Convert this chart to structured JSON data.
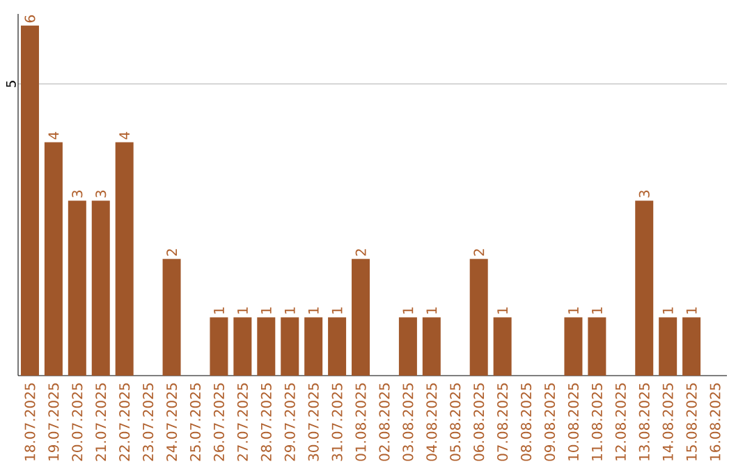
{
  "chart_data": {
    "type": "bar",
    "categories": [
      "18.07.2025",
      "19.07.2025",
      "20.07.2025",
      "21.07.2025",
      "22.07.2025",
      "23.07.2025",
      "24.07.2025",
      "25.07.2025",
      "26.07.2025",
      "27.07.2025",
      "28.07.2025",
      "29.07.2025",
      "30.07.2025",
      "31.07.2025",
      "01.08.2025",
      "02.08.2025",
      "03.08.2025",
      "04.08.2025",
      "05.08.2025",
      "06.08.2025",
      "07.08.2025",
      "08.08.2025",
      "09.08.2025",
      "10.08.2025",
      "11.08.2025",
      "12.08.2025",
      "13.08.2025",
      "14.08.2025",
      "15.08.2025",
      "16.08.2025"
    ],
    "values": [
      6,
      4,
      3,
      3,
      4,
      0,
      2,
      0,
      1,
      1,
      1,
      1,
      1,
      1,
      2,
      0,
      1,
      1,
      0,
      2,
      1,
      0,
      0,
      1,
      1,
      0,
      3,
      1,
      1,
      0
    ],
    "value_labels": [
      "6",
      "4",
      "3",
      "3",
      "4",
      null,
      "2",
      null,
      "1",
      "1",
      "1",
      "1",
      "1",
      "1",
      "2",
      null,
      "1",
      "1",
      null,
      "2",
      "1",
      null,
      null,
      "1",
      "1",
      null,
      "3",
      "1",
      "1",
      null
    ],
    "color": "#a0572a",
    "ylim": [
      0,
      6.2
    ],
    "yticks": [
      5
    ],
    "grid": "y"
  }
}
